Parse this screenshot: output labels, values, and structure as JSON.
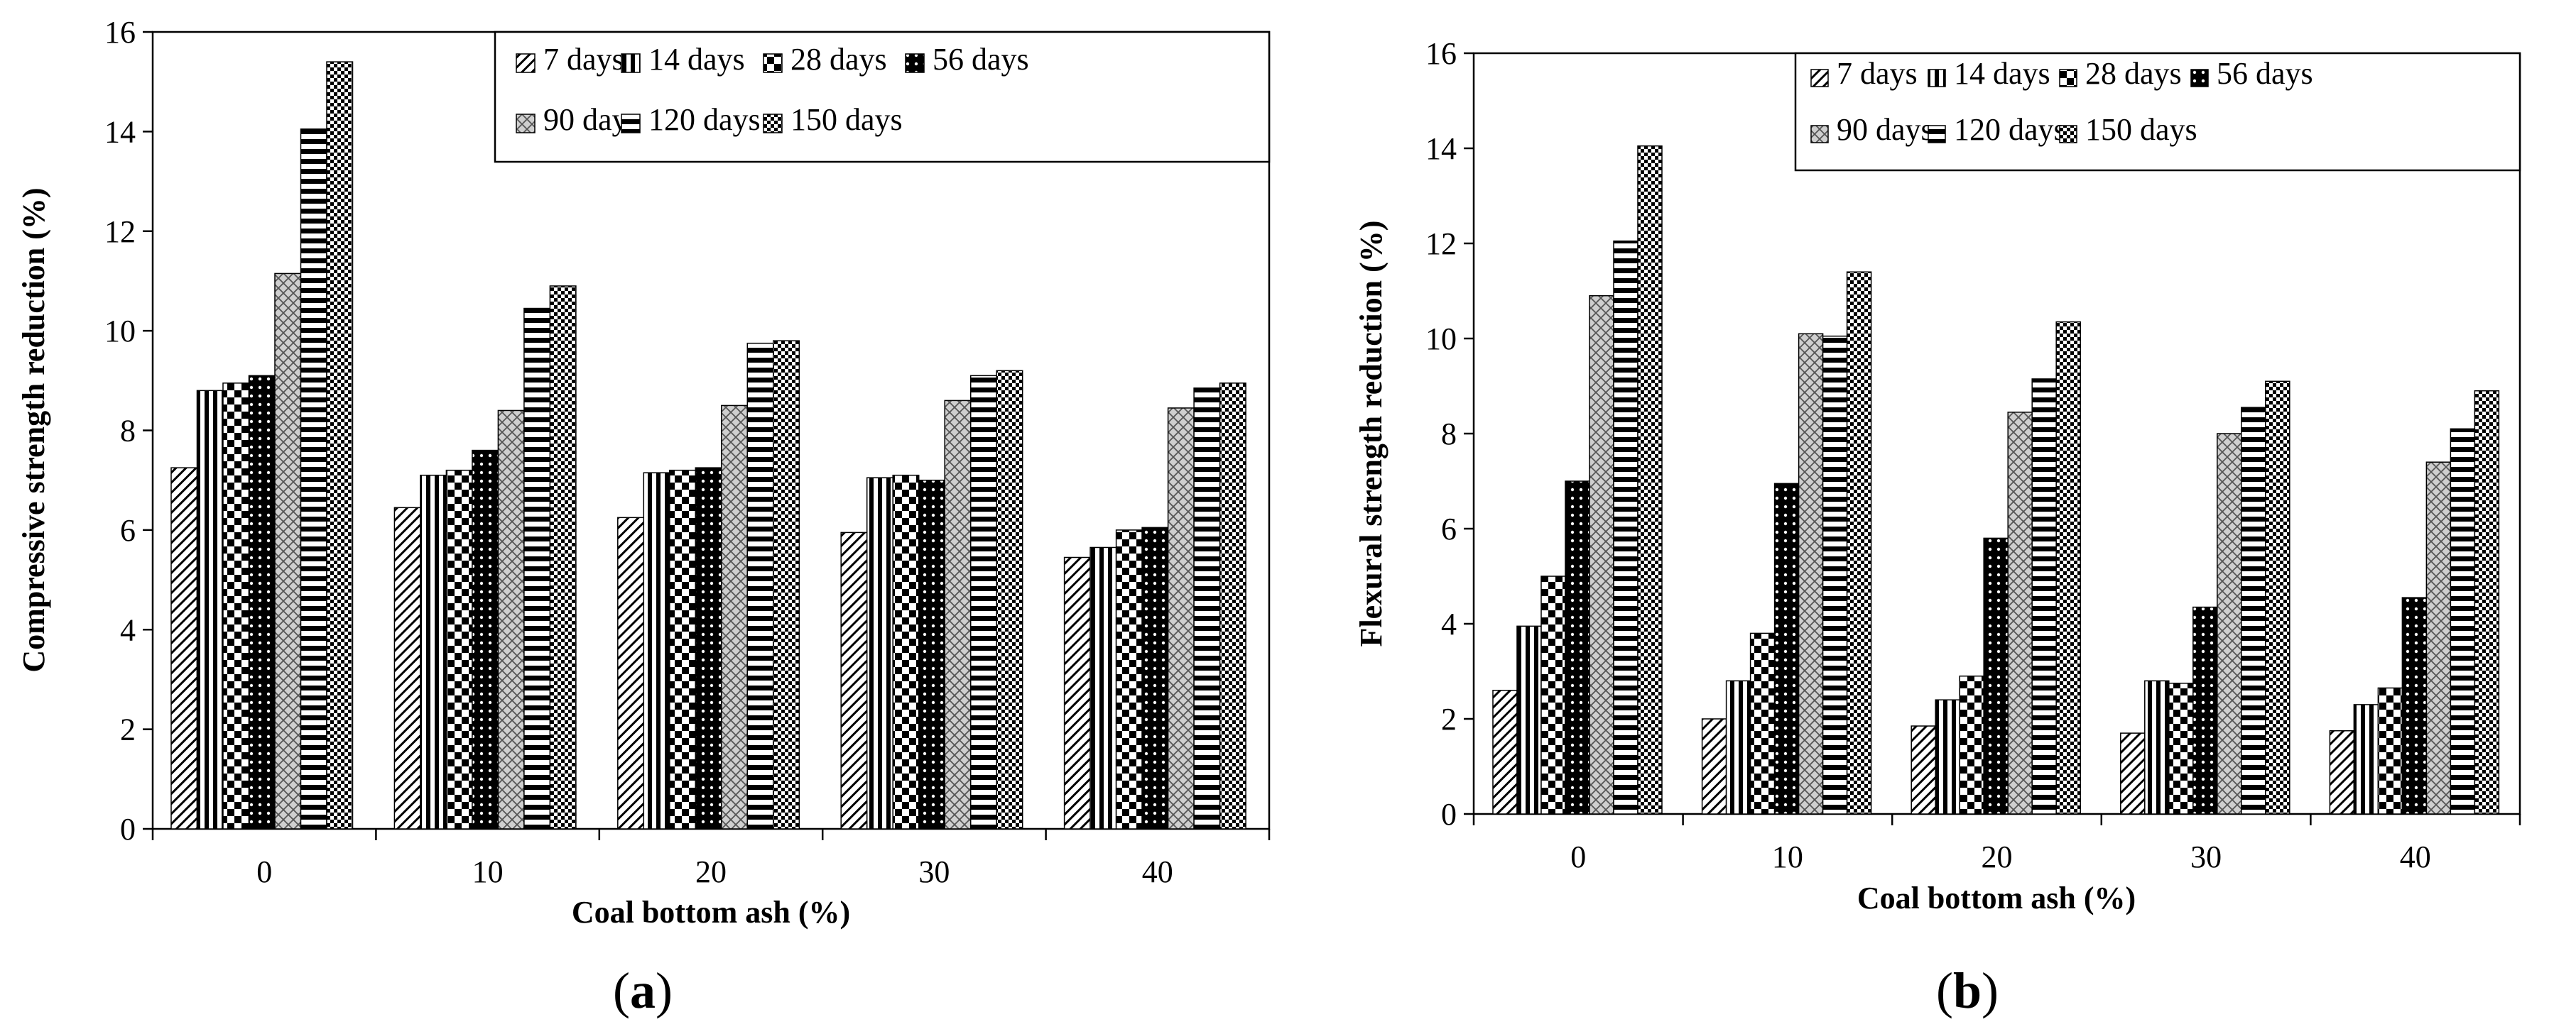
{
  "chart_data": [
    {
      "type": "bar",
      "panel_label": "a",
      "categories": [
        "0",
        "10",
        "20",
        "30",
        "40"
      ],
      "xlabel": "Coal bottom ash (%)",
      "ylabel": "Compressive strength reduction (%)",
      "ylim": [
        0,
        16
      ],
      "yticks": [
        0,
        2,
        4,
        6,
        8,
        10,
        12,
        14,
        16
      ],
      "legend_position": "top-right",
      "grid": false,
      "series": [
        {
          "name": "7 days",
          "pattern": "diag",
          "values": [
            7.25,
            6.45,
            6.25,
            5.95,
            5.45
          ]
        },
        {
          "name": "14 days",
          "pattern": "vert",
          "values": [
            8.8,
            7.1,
            7.15,
            7.05,
            5.65
          ]
        },
        {
          "name": "28 days",
          "pattern": "check",
          "values": [
            8.95,
            7.2,
            7.2,
            7.1,
            6.0
          ]
        },
        {
          "name": "56 days",
          "pattern": "dots",
          "values": [
            9.1,
            7.6,
            7.25,
            7.0,
            6.05
          ]
        },
        {
          "name": "90 days",
          "pattern": "cross",
          "values": [
            11.15,
            8.4,
            8.5,
            8.6,
            8.45
          ]
        },
        {
          "name": "120 days",
          "pattern": "horiz",
          "values": [
            14.05,
            10.45,
            9.75,
            9.1,
            8.85
          ]
        },
        {
          "name": "150 days",
          "pattern": "checker",
          "values": [
            15.4,
            10.9,
            9.8,
            9.2,
            8.95
          ]
        }
      ]
    },
    {
      "type": "bar",
      "panel_label": "b",
      "categories": [
        "0",
        "10",
        "20",
        "30",
        "40"
      ],
      "xlabel": "Coal bottom ash (%)",
      "ylabel": "Flexural strength reduction (%)",
      "ylim": [
        0,
        16
      ],
      "yticks": [
        0,
        2,
        4,
        6,
        8,
        10,
        12,
        14,
        16
      ],
      "legend_position": "top-right",
      "grid": false,
      "series": [
        {
          "name": "7 days",
          "pattern": "diag",
          "values": [
            2.6,
            2.0,
            1.85,
            1.7,
            1.75
          ]
        },
        {
          "name": "14 days",
          "pattern": "vert",
          "values": [
            3.95,
            2.8,
            2.4,
            2.8,
            2.3
          ]
        },
        {
          "name": "28 days",
          "pattern": "check",
          "values": [
            5.0,
            3.8,
            2.9,
            2.75,
            2.65
          ]
        },
        {
          "name": "56 days",
          "pattern": "dots",
          "values": [
            7.0,
            6.95,
            5.8,
            4.35,
            4.55
          ]
        },
        {
          "name": "90 days",
          "pattern": "cross",
          "values": [
            10.9,
            10.1,
            8.45,
            8.0,
            7.4
          ]
        },
        {
          "name": "120 days",
          "pattern": "horiz",
          "values": [
            12.05,
            10.05,
            9.15,
            8.55,
            8.1
          ]
        },
        {
          "name": "150 days",
          "pattern": "checker",
          "values": [
            14.05,
            11.4,
            10.35,
            9.1,
            8.9
          ]
        }
      ]
    }
  ]
}
